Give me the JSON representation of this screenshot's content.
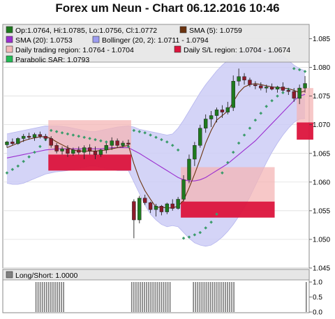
{
  "title": "Forex um Neun - Chart 06.12.2016 10:46",
  "legend": [
    {
      "label": "Op:1.0764, Hi:1.0785, Lo:1.0756, Cl:1.0772",
      "color": "#1e7a1e"
    },
    {
      "label": "SMA (5): 1.0759",
      "color": "#6b3410"
    },
    {
      "label": "SMA (20): 1.0753",
      "color": "#9b2fd0"
    },
    {
      "label": "Bollinger (20, 2): 1.0711 - 1.0794",
      "color": "#9c9cf0"
    },
    {
      "label": "Daily trading region: 1.0764 - 1.0704",
      "color": "#f4b8b8"
    },
    {
      "label": "Daily S/L region: 1.0704 - 1.0674",
      "color": "#dc143c"
    },
    {
      "label": "Parabolic SAR: 1.0793",
      "color": "#22bb55"
    }
  ],
  "lower_panel": {
    "label": "Long/Short: 1.0000",
    "ticks": [
      "1.0",
      "0.5",
      "0.0"
    ]
  },
  "chart_data": {
    "type": "candlestick",
    "ylim": [
      1.045,
      1.0875
    ],
    "yticks": [
      "1.045",
      "1.050",
      "1.055",
      "1.060",
      "1.065",
      "1.070",
      "1.075",
      "1.080",
      "1.085"
    ],
    "candles": [
      [
        1.0665,
        1.0672,
        1.066,
        1.067
      ],
      [
        1.067,
        1.0676,
        1.0664,
        1.0667
      ],
      [
        1.0667,
        1.0678,
        1.0665,
        1.0676
      ],
      [
        1.0676,
        1.0684,
        1.067,
        1.068
      ],
      [
        1.068,
        1.0686,
        1.0674,
        1.0678
      ],
      [
        1.0678,
        1.0686,
        1.0672,
        1.0683
      ],
      [
        1.0683,
        1.0688,
        1.0676,
        1.068
      ],
      [
        1.068,
        1.0684,
        1.0672,
        1.0676
      ],
      [
        1.0676,
        1.068,
        1.066,
        1.0664
      ],
      [
        1.0664,
        1.0668,
        1.065,
        1.0654
      ],
      [
        1.0654,
        1.0662,
        1.0648,
        1.0658
      ],
      [
        1.0658,
        1.0664,
        1.0644,
        1.065
      ],
      [
        1.065,
        1.066,
        1.0646,
        1.0656
      ],
      [
        1.0656,
        1.0662,
        1.0648,
        1.0652
      ],
      [
        1.0652,
        1.0664,
        1.064,
        1.066
      ],
      [
        1.066,
        1.0666,
        1.0648,
        1.0654
      ],
      [
        1.0654,
        1.0662,
        1.064,
        1.0648
      ],
      [
        1.0648,
        1.0658,
        1.0644,
        1.0656
      ],
      [
        1.0656,
        1.0668,
        1.065,
        1.0664
      ],
      [
        1.0664,
        1.0678,
        1.0656,
        1.0672
      ],
      [
        1.0672,
        1.0676,
        1.066,
        1.0664
      ],
      [
        1.0664,
        1.0672,
        1.066,
        1.0668
      ],
      [
        1.0668,
        1.0674,
        1.0662,
        1.0666
      ],
      [
        1.0566,
        1.057,
        1.0502,
        1.0534
      ],
      [
        1.0534,
        1.0576,
        1.0528,
        1.0572
      ],
      [
        1.0572,
        1.0578,
        1.056,
        1.0564
      ],
      [
        1.0564,
        1.0566,
        1.0546,
        1.0552
      ],
      [
        1.0552,
        1.0562,
        1.054,
        1.0558
      ],
      [
        1.0558,
        1.056,
        1.0542,
        1.0548
      ],
      [
        1.0548,
        1.0564,
        1.0544,
        1.0562
      ],
      [
        1.0562,
        1.057,
        1.055,
        1.0554
      ],
      [
        1.0554,
        1.0574,
        1.0552,
        1.057
      ],
      [
        1.057,
        1.0612,
        1.0566,
        1.0604
      ],
      [
        1.0604,
        1.0648,
        1.0598,
        1.064
      ],
      [
        1.064,
        1.067,
        1.0628,
        1.0664
      ],
      [
        1.0664,
        1.07,
        1.066,
        1.0694
      ],
      [
        1.0694,
        1.0718,
        1.0686,
        1.071
      ],
      [
        1.071,
        1.0724,
        1.0696,
        1.0716
      ],
      [
        1.0716,
        1.073,
        1.0704,
        1.0726
      ],
      [
        1.0726,
        1.0734,
        1.0712,
        1.0722
      ],
      [
        1.0722,
        1.074,
        1.0718,
        1.073
      ],
      [
        1.073,
        1.0786,
        1.0724,
        1.0776
      ],
      [
        1.0776,
        1.0798,
        1.0768,
        1.0784
      ],
      [
        1.0784,
        1.079,
        1.077,
        1.0778
      ],
      [
        1.0778,
        1.0782,
        1.0766,
        1.077
      ],
      [
        1.077,
        1.0776,
        1.0762,
        1.0768
      ],
      [
        1.0768,
        1.0774,
        1.076,
        1.0764
      ],
      [
        1.0764,
        1.077,
        1.0756,
        1.0766
      ],
      [
        1.0766,
        1.0772,
        1.076,
        1.0762
      ],
      [
        1.0762,
        1.0768,
        1.0756,
        1.0766
      ],
      [
        1.0766,
        1.0774,
        1.0758,
        1.076
      ],
      [
        1.076,
        1.0764,
        1.0752,
        1.0758
      ],
      [
        1.0758,
        1.0764,
        1.074,
        1.0746
      ],
      [
        1.0746,
        1.077,
        1.0736,
        1.0764
      ],
      [
        1.0764,
        1.0785,
        1.0756,
        1.0772
      ]
    ],
    "sma5": [
      1.066,
      1.0664,
      1.0668,
      1.0672,
      1.0675,
      1.0677,
      1.0679,
      1.0679,
      1.0676,
      1.067,
      1.0665,
      1.066,
      1.0656,
      1.0654,
      1.0654,
      1.0654,
      1.0654,
      1.0655,
      1.0656,
      1.0658,
      1.066,
      1.0662,
      1.0664,
      1.0632,
      1.0605,
      1.0585,
      1.057,
      1.0556,
      1.0556,
      1.0555,
      1.0555,
      1.0558,
      1.0568,
      1.059,
      1.0614,
      1.064,
      1.0668,
      1.069,
      1.0708,
      1.0716,
      1.0724,
      1.074,
      1.0756,
      1.0766,
      1.077,
      1.0772,
      1.077,
      1.0768,
      1.0766,
      1.0765,
      1.0764,
      1.0763,
      1.076,
      1.0756,
      1.0759
    ],
    "sma20": [
      1.0642,
      1.0644,
      1.0646,
      1.0648,
      1.065,
      1.0652,
      1.0654,
      1.0656,
      1.0657,
      1.0658,
      1.0658,
      1.0658,
      1.0658,
      1.0658,
      1.0658,
      1.0658,
      1.0658,
      1.0658,
      1.0659,
      1.066,
      1.066,
      1.066,
      1.066,
      1.0655,
      1.065,
      1.0644,
      1.0638,
      1.0632,
      1.0626,
      1.062,
      1.0614,
      1.0608,
      1.0604,
      1.0602,
      1.0602,
      1.0604,
      1.0608,
      1.0614,
      1.062,
      1.0626,
      1.0632,
      1.064,
      1.0648,
      1.0656,
      1.0664,
      1.0672,
      1.0682,
      1.0692,
      1.0702,
      1.0712,
      1.0722,
      1.0732,
      1.0742,
      1.075,
      1.0753
    ],
    "boll_upper": [
      1.0684,
      1.0686,
      1.0688,
      1.069,
      1.0692,
      1.0694,
      1.0696,
      1.0698,
      1.0698,
      1.0698,
      1.0697,
      1.0696,
      1.0694,
      1.0692,
      1.069,
      1.0688,
      1.0688,
      1.069,
      1.0692,
      1.0694,
      1.0696,
      1.0697,
      1.0698,
      1.0696,
      1.0692,
      1.069,
      1.0688,
      1.0686,
      1.0684,
      1.0682,
      1.0684,
      1.0694,
      1.0708,
      1.0724,
      1.074,
      1.0756,
      1.077,
      1.0782,
      1.0794,
      1.0804,
      1.0812,
      1.082,
      1.0826,
      1.083,
      1.0832,
      1.0834,
      1.0834,
      1.0832,
      1.083,
      1.0826,
      1.082,
      1.0812,
      1.0804,
      1.0798,
      1.0794
    ],
    "boll_lower": [
      1.0598,
      1.0596,
      1.0596,
      1.0598,
      1.0602,
      1.0606,
      1.061,
      1.0614,
      1.0616,
      1.0618,
      1.0619,
      1.062,
      1.0622,
      1.0624,
      1.0626,
      1.0628,
      1.0628,
      1.0626,
      1.0624,
      1.0622,
      1.062,
      1.062,
      1.062,
      1.06,
      1.058,
      1.056,
      1.0544,
      1.0534,
      1.0526,
      1.0522,
      1.0524,
      1.0522,
      1.0512,
      1.0502,
      1.0494,
      1.049,
      1.0488,
      1.049,
      1.0496,
      1.0504,
      1.0514,
      1.0526,
      1.054,
      1.0556,
      1.0574,
      1.0594,
      1.0614,
      1.0634,
      1.0652,
      1.0668,
      1.0682,
      1.0694,
      1.0704,
      1.071,
      1.0711
    ],
    "sar": [
      1.0616,
      1.0622,
      1.0628,
      1.0636,
      1.0644,
      1.0652,
      1.0662,
      1.0674,
      1.069,
      1.0688,
      1.0686,
      1.0684,
      1.0682,
      1.068,
      1.0678,
      1.0676,
      1.0674,
      1.0672,
      1.067,
      1.0668,
      1.0666,
      1.0664,
      1.0662,
      1.069,
      1.0688,
      1.0686,
      1.0682,
      1.0678,
      1.0674,
      1.067,
      1.0664,
      1.0656,
      1.0502,
      1.0504,
      1.0508,
      1.0512,
      1.052,
      1.053,
      1.0544,
      1.0616,
      1.0634,
      1.0652,
      1.0668,
      1.0682,
      1.0694,
      1.0708,
      1.072,
      1.0732,
      1.0742,
      1.075,
      1.0756,
      1.0762,
      1.0798,
      1.0796,
      1.0793
    ],
    "daily_regions": [
      {
        "from": 8,
        "to": 22,
        "trade_high": 1.0708,
        "trade_low": 1.0648,
        "sl_high": 1.0648,
        "sl_low": 1.062
      },
      {
        "from": 32,
        "to": 48,
        "trade_high": 1.0626,
        "trade_low": 1.0566,
        "sl_high": 1.0566,
        "sl_low": 1.0538
      },
      {
        "from": 53,
        "to": 55,
        "trade_high": 1.0764,
        "trade_low": 1.0704,
        "sl_high": 1.0704,
        "sl_low": 1.0674
      }
    ],
    "long_short": [
      0,
      0,
      0,
      0,
      0,
      0,
      0,
      0,
      0,
      0,
      0,
      0,
      0,
      0,
      1,
      1,
      1,
      1,
      1,
      1,
      1,
      1,
      1,
      1,
      1,
      1,
      1,
      1,
      0,
      0,
      0,
      0,
      0,
      0,
      0,
      0,
      0,
      0,
      0,
      0,
      0,
      0,
      0,
      0,
      0,
      0,
      0,
      0,
      0,
      0,
      0,
      0,
      0,
      0,
      0,
      0,
      0,
      0,
      0,
      1,
      1,
      1,
      1,
      1,
      1,
      1,
      1,
      1,
      1,
      1,
      1,
      1,
      1,
      1,
      1,
      1,
      1,
      1,
      0,
      0,
      0,
      0,
      0,
      0,
      0,
      0,
      0,
      0,
      1,
      1,
      1,
      1,
      1,
      1,
      1,
      1,
      1,
      1,
      1,
      1,
      1,
      1,
      1,
      1,
      1,
      1,
      1,
      1,
      0,
      0,
      0,
      0,
      0,
      0,
      0,
      0,
      0,
      0,
      0,
      0,
      0,
      0,
      0,
      0,
      0,
      0,
      0,
      0,
      0,
      0,
      0,
      0,
      0,
      0,
      0,
      0,
      0,
      0,
      0,
      0,
      0,
      1
    ]
  }
}
